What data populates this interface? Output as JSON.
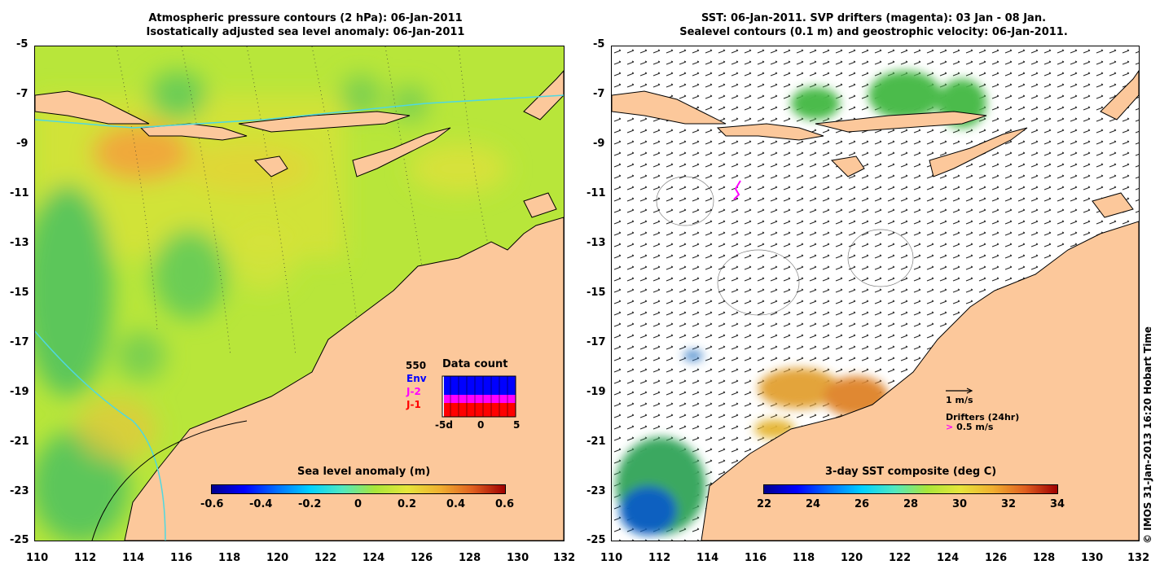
{
  "left_panel": {
    "title_line1": "Atmospheric pressure contours (2 hPa): 06-Jan-2011",
    "title_line2": "Isostatically adjusted sea level anomaly: 06-Jan-2011",
    "colorbar_title": "Sea level anomaly (m)",
    "colorbar_ticks": [
      "-0.6",
      "-0.4",
      "-0.2",
      "0",
      "0.2",
      "0.4",
      "0.6"
    ],
    "data_count": {
      "title": "Data count",
      "max_label": "550",
      "legend": [
        {
          "label": "Env",
          "color": "#0000ff"
        },
        {
          "label": "J-2",
          "color": "#ff00ff"
        },
        {
          "label": "J-1",
          "color": "#ff0000"
        }
      ],
      "x_ticks": [
        "-5d",
        "0",
        "5"
      ]
    }
  },
  "right_panel": {
    "title_line1": "SST: 06-Jan-2011. SVP drifters (magenta): 03 Jan - 08 Jan.",
    "title_line2": "Sealevel contours (0.1 m) and geostrophic velocity: 06-Jan-2011.",
    "colorbar_title": "3-day SST composite (deg C)",
    "colorbar_ticks": [
      "22",
      "24",
      "26",
      "28",
      "30",
      "32",
      "34"
    ],
    "velocity_scale_label": "1 m/s",
    "drifters_label": "Drifters (24hr)",
    "drifter_speed_label": "0.5 m/s"
  },
  "axes": {
    "x_ticks": [
      "110",
      "112",
      "114",
      "116",
      "118",
      "120",
      "122",
      "124",
      "126",
      "128",
      "130",
      "132"
    ],
    "y_ticks": [
      "-5",
      "-7",
      "-9",
      "-11",
      "-13",
      "-15",
      "-17",
      "-19",
      "-21",
      "-23",
      "-25"
    ]
  },
  "copyright": "© IMOS 31-Jan-2013 16:20 Hobart Time",
  "colors": {
    "land": "#fcc89b",
    "coast_line": "#000000",
    "contour_cyan": "#4fd8e0",
    "ocean_base": "#b8e63a"
  }
}
